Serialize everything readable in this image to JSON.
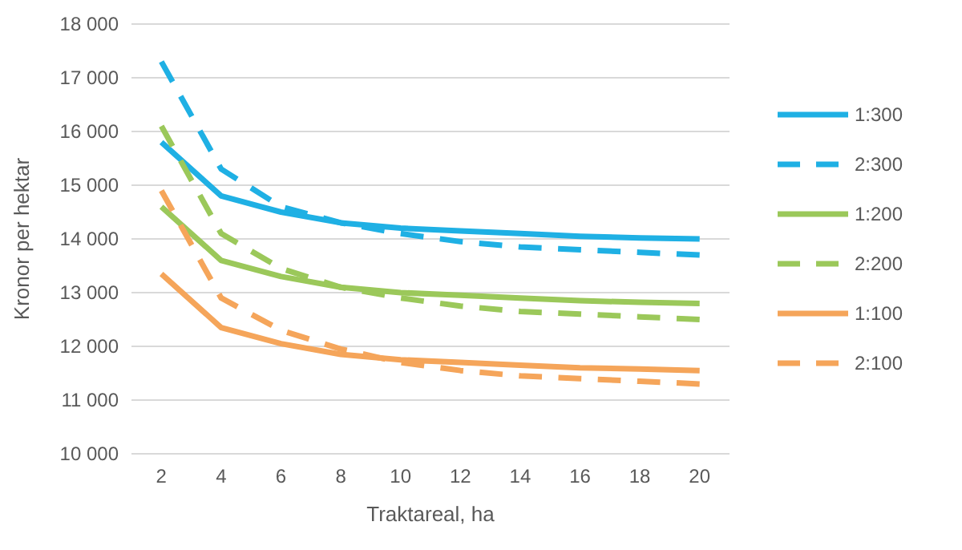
{
  "chart_data": {
    "type": "line",
    "xlabel": "Traktareal, ha",
    "ylabel": "Kronor per hektar",
    "categories": [
      "2",
      "4",
      "6",
      "8",
      "10",
      "12",
      "14",
      "16",
      "18",
      "20"
    ],
    "series": [
      {
        "name": "1:300",
        "color": "#1fb0e4",
        "line_style": "solid",
        "values": [
          15800,
          14800,
          14500,
          14300,
          14200,
          14150,
          14100,
          14050,
          14020,
          14000
        ]
      },
      {
        "name": "2:300",
        "color": "#1fb0e4",
        "line_style": "dashed",
        "values": [
          17300,
          15300,
          14600,
          14300,
          14100,
          13950,
          13850,
          13800,
          13750,
          13700
        ]
      },
      {
        "name": "1:200",
        "color": "#9bc85a",
        "line_style": "solid",
        "values": [
          14600,
          13600,
          13300,
          13100,
          13000,
          12950,
          12900,
          12850,
          12820,
          12800
        ]
      },
      {
        "name": "2:200",
        "color": "#9bc85a",
        "line_style": "dashed",
        "values": [
          16100,
          14100,
          13450,
          13100,
          12900,
          12750,
          12650,
          12600,
          12550,
          12500
        ]
      },
      {
        "name": "1:100",
        "color": "#f5a55a",
        "line_style": "solid",
        "values": [
          13350,
          12350,
          12050,
          11850,
          11750,
          11700,
          11650,
          11600,
          11580,
          11550
        ]
      },
      {
        "name": "2:100",
        "color": "#f5a55a",
        "line_style": "dashed",
        "values": [
          14900,
          12900,
          12300,
          11950,
          11700,
          11550,
          11450,
          11400,
          11350,
          11300
        ]
      }
    ],
    "ylim": [
      10000,
      18000
    ],
    "yticks": [
      {
        "value": 10000,
        "label": "10 000"
      },
      {
        "value": 11000,
        "label": "11 000"
      },
      {
        "value": 12000,
        "label": "12 000"
      },
      {
        "value": 13000,
        "label": "13 000"
      },
      {
        "value": 14000,
        "label": "14 000"
      },
      {
        "value": 15000,
        "label": "15 000"
      },
      {
        "value": 16000,
        "label": "16 000"
      },
      {
        "value": 17000,
        "label": "17 000"
      },
      {
        "value": 18000,
        "label": "18 000"
      }
    ],
    "grid": "y",
    "legend": "right",
    "marker": "none"
  }
}
